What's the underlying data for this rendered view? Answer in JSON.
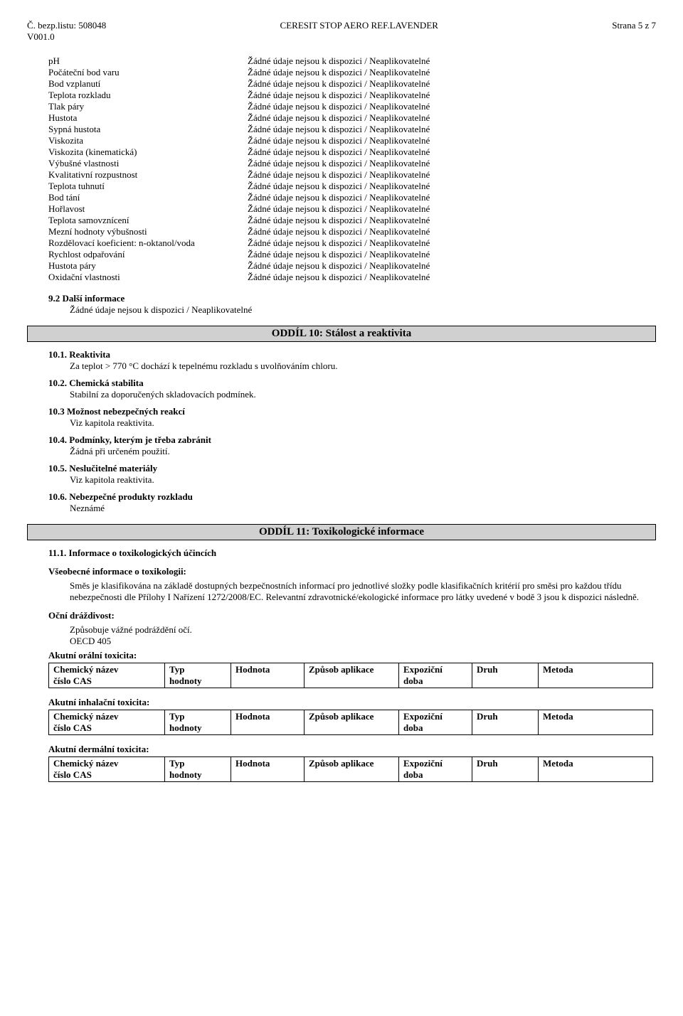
{
  "header": {
    "left_line1": "Č. bezp.listu: 508048",
    "left_line2": "V001.0",
    "center": "CERESIT STOP AERO REF.LAVENDER",
    "right": "Strana 5 z 7"
  },
  "na_value": "Žádné údaje nejsou k dispozici / Neaplikovatelné",
  "properties": [
    "pH",
    "Počáteční bod varu",
    "Bod vzplanutí",
    "Teplota rozkladu",
    "Tlak páry",
    "Hustota",
    "Sypná hustota",
    "Viskozita",
    "Viskozita (kinematická)",
    "Výbušné vlastnosti",
    "Kvalitativní rozpustnost",
    "Teplota tuhnutí",
    "Bod tání",
    "Hořlavost",
    "Teplota samovznícení",
    "Mezní hodnoty výbušnosti",
    "Rozdělovací koeficient: n-oktanol/voda",
    "Rychlost odpařování",
    "Hustota páry",
    "Oxidační vlastnosti"
  ],
  "section9_2": {
    "title": "9.2 Další informace",
    "body": "Žádné údaje nejsou k dispozici / Neaplikovatelné"
  },
  "section10": {
    "title": "ODDÍL 10: Stálost a reaktivita",
    "items": [
      {
        "num": "10.1. Reaktivita",
        "body": "Za teplot > 770 °C dochází k tepelnému rozkladu s uvolňováním chloru."
      },
      {
        "num": "10.2. Chemická stabilita",
        "body": "Stabilní za doporučených skladovacích podmínek."
      },
      {
        "num": "10.3 Možnost nebezpečných reakcí",
        "body": "Viz kapitola reaktivita."
      },
      {
        "num": "10.4. Podmínky, kterým je třeba zabránit",
        "body": "Žádná při určeném použití."
      },
      {
        "num": "10.5. Neslučitelné materiály",
        "body": "Viz kapitola reaktivita."
      },
      {
        "num": "10.6. Nebezpečné produkty rozkladu",
        "body": "Neznámé"
      }
    ]
  },
  "section11": {
    "title": "ODDÍL 11: Toxikologické informace",
    "sub": "11.1. Informace o toxikologických účincích",
    "general_title": "Všeobecné informace o toxikologii:",
    "general_body": "Směs je klasifikována na základě dostupných bezpečnostních informací pro jednotlivé složky podle klasifikačních kritérií pro směsi pro každou třídu nebezpečnosti dle Přílohy I Nařízení 1272/2008/EC. Relevantní zdravotnické/ekologické informace pro látky uvedené v bodě 3 jsou k dispozici následně.",
    "eye_title": "Oční dráždivost:",
    "eye_body1": "Způsobuje vážné podráždění očí.",
    "eye_body2": "OECD 405",
    "tox_tables": [
      "Akutní orální toxicita:",
      "Akutní inhalační toxicita:",
      "Akutní dermální toxicita:"
    ],
    "table_cols_row1": [
      "Chemický název",
      "Typ",
      "Hodnota",
      "Způsob aplikace",
      "Expoziční",
      "Druh",
      "Metoda"
    ],
    "table_cols_row2": [
      "číslo CAS",
      "hodnoty",
      "",
      "",
      "doba",
      "",
      ""
    ]
  }
}
